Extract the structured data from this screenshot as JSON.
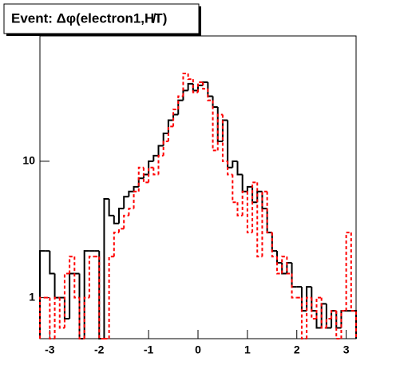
{
  "chart_data": {
    "type": "histogram",
    "title": "Event: Δφ(electron1,H̸T)",
    "bins": [
      -3.2,
      -3.1,
      -3.0,
      -2.9,
      -2.8,
      -2.7,
      -2.6,
      -2.5,
      -2.4,
      -2.3,
      -2.2,
      -2.1,
      -2.0,
      -1.9,
      -1.8,
      -1.7,
      -1.6,
      -1.5,
      -1.4,
      -1.3,
      -1.2,
      -1.1,
      -1.0,
      -0.9,
      -0.8,
      -0.7,
      -0.6,
      -0.5,
      -0.4,
      -0.3,
      -0.2,
      -0.1,
      0.0,
      0.1,
      0.2,
      0.3,
      0.4,
      0.5,
      0.6,
      0.7,
      0.8,
      0.9,
      1.0,
      1.1,
      1.2,
      1.3,
      1.4,
      1.5,
      1.6,
      1.7,
      1.8,
      1.9,
      2.0,
      2.1,
      2.2,
      2.3,
      2.4,
      2.5,
      2.6,
      2.7,
      2.8,
      2.9,
      3.0,
      3.1,
      3.2
    ],
    "series": [
      {
        "color": "#000000",
        "dash": false,
        "values": [
          2.2,
          2.2,
          1.5,
          1.0,
          1.0,
          0.7,
          1.5,
          1.5,
          0,
          2.2,
          2.2,
          2.2,
          0,
          5.3,
          4.0,
          3.5,
          4.5,
          5.5,
          6.0,
          6.5,
          7.5,
          8.0,
          10,
          11,
          13,
          16,
          20,
          22,
          28,
          33,
          37,
          33,
          36,
          38,
          30,
          25,
          14,
          20,
          9,
          10,
          8,
          6,
          6.5,
          5,
          6,
          4.5,
          3,
          2.2,
          1.8,
          1.5,
          1.8,
          1.2,
          1.2,
          0.8,
          1.2,
          0.8,
          0.6,
          0.9,
          0.6,
          0.8,
          0.6,
          0.8,
          0.8,
          0.8
        ]
      },
      {
        "color": "#ff0000",
        "dash": true,
        "values": [
          1,
          1,
          0,
          1,
          0.6,
          1.5,
          2,
          1,
          0,
          1,
          2,
          2,
          0,
          0,
          2,
          3,
          3.2,
          4,
          4.5,
          6,
          9,
          7,
          9,
          8,
          11,
          14,
          18,
          24,
          30,
          44,
          40,
          32,
          38,
          34,
          28,
          12,
          22,
          10,
          8,
          5,
          4,
          6,
          3,
          7,
          2,
          6,
          3,
          2,
          1.5,
          2,
          1.5,
          1,
          1,
          0.5,
          1,
          0.7,
          1,
          0.6,
          0.7,
          0.8,
          0.5,
          0.8,
          3,
          0.8
        ]
      }
    ],
    "xlim": [
      -3.2,
      3.2
    ],
    "xticks": [
      -3,
      -2,
      -1,
      0,
      1,
      2,
      3
    ],
    "ylim": [
      0.5,
      83
    ],
    "yticks": [
      1,
      10
    ],
    "log_y": true
  }
}
